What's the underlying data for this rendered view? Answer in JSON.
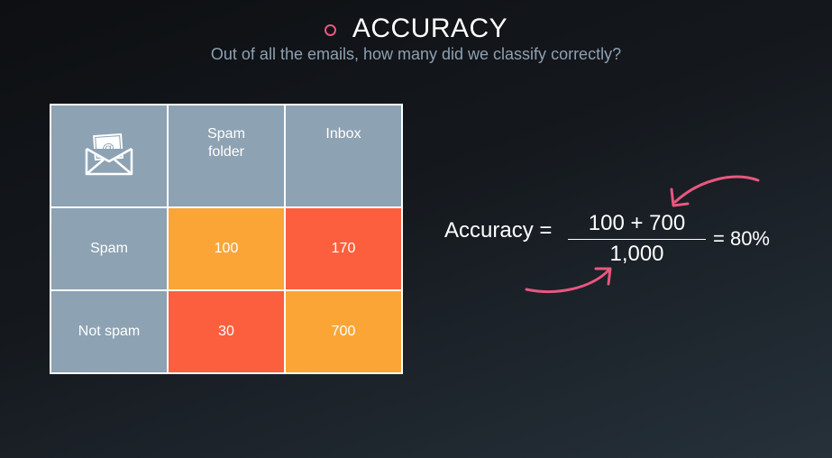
{
  "slide": {
    "title": "ACCURACY",
    "subtitle": "Out of all the emails, how many did we classify correctly?"
  },
  "matrix": {
    "corner_icon": "email-envelope-icon",
    "columns": [
      "Spam\nfolder",
      "Inbox"
    ],
    "rows": [
      {
        "label": "Spam",
        "cells": [
          "100",
          "170"
        ]
      },
      {
        "label": "Not spam",
        "cells": [
          "30",
          "700"
        ]
      }
    ]
  },
  "formula": {
    "label": "Accuracy =",
    "numerator": "100 + 700",
    "denominator": "1,000",
    "result": "= 80%"
  },
  "colors": {
    "header_cell": "#8da2b3",
    "correct_cell": "#fba537",
    "incorrect_cell": "#fc5f3d",
    "accent_pink": "#e8577f",
    "subtitle_text": "#8ea0b1"
  }
}
